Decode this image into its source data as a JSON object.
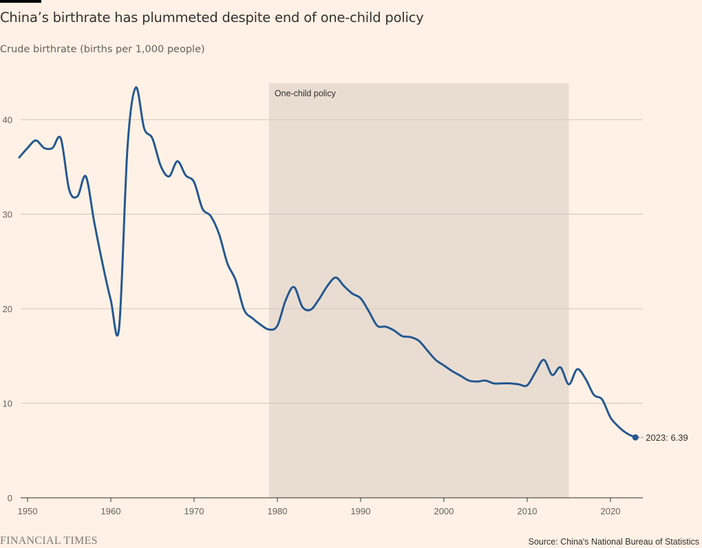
{
  "header": {
    "title": "China’s birthrate has plummeted despite end of one-child policy",
    "subtitle": "Crude birthrate (births per 1,000 people)"
  },
  "footer": {
    "brand": "FINANCIAL TIMES",
    "source": "Source: China's National Bureau of Statistics"
  },
  "colors": {
    "line": "#245890",
    "shade": "#E9DDD2",
    "grid": "#CEC6B9",
    "axis": "#33302E",
    "tick_text": "#66605C",
    "background": "#FFF1E5"
  },
  "chart_data": {
    "type": "line",
    "title": "China’s birthrate has plummeted despite end of one-child policy",
    "ylabel": "Crude birthrate (births per 1,000 people)",
    "xlabel": "",
    "xlim": [
      1949,
      2024
    ],
    "ylim": [
      0,
      44
    ],
    "yticks": [
      0,
      10,
      20,
      30,
      40
    ],
    "xticks": [
      1950,
      1960,
      1970,
      1980,
      1990,
      2000,
      2010,
      2020
    ],
    "grid": true,
    "shaded_region": {
      "label": "One-child policy",
      "x_start": 1979,
      "x_end": 2015
    },
    "end_label": "2023: 6.39",
    "series": [
      {
        "points": [
          [
            1949,
            36.0
          ],
          [
            1950,
            37.0
          ],
          [
            1951,
            37.8
          ],
          [
            1952,
            37.0
          ],
          [
            1953,
            37.0
          ],
          [
            1954,
            38.0
          ],
          [
            1955,
            32.6
          ],
          [
            1956,
            31.9
          ],
          [
            1957,
            34.0
          ],
          [
            1958,
            29.2
          ],
          [
            1959,
            24.8
          ],
          [
            1960,
            20.9
          ],
          [
            1961,
            18.0
          ],
          [
            1962,
            37.0
          ],
          [
            1963,
            43.4
          ],
          [
            1964,
            39.1
          ],
          [
            1965,
            38.0
          ],
          [
            1966,
            35.1
          ],
          [
            1967,
            34.0
          ],
          [
            1968,
            35.6
          ],
          [
            1969,
            34.1
          ],
          [
            1970,
            33.4
          ],
          [
            1971,
            30.6
          ],
          [
            1972,
            29.8
          ],
          [
            1973,
            27.9
          ],
          [
            1974,
            24.8
          ],
          [
            1975,
            23.0
          ],
          [
            1976,
            19.9
          ],
          [
            1977,
            19.0
          ],
          [
            1978,
            18.3
          ],
          [
            1979,
            17.8
          ],
          [
            1980,
            18.2
          ],
          [
            1981,
            20.9
          ],
          [
            1982,
            22.3
          ],
          [
            1983,
            20.2
          ],
          [
            1984,
            19.9
          ],
          [
            1985,
            21.0
          ],
          [
            1986,
            22.4
          ],
          [
            1987,
            23.3
          ],
          [
            1988,
            22.4
          ],
          [
            1989,
            21.6
          ],
          [
            1990,
            21.1
          ],
          [
            1991,
            19.7
          ],
          [
            1992,
            18.2
          ],
          [
            1993,
            18.1
          ],
          [
            1994,
            17.7
          ],
          [
            1995,
            17.1
          ],
          [
            1996,
            17.0
          ],
          [
            1997,
            16.6
          ],
          [
            1998,
            15.6
          ],
          [
            1999,
            14.6
          ],
          [
            2000,
            14.0
          ],
          [
            2001,
            13.4
          ],
          [
            2002,
            12.9
          ],
          [
            2003,
            12.4
          ],
          [
            2004,
            12.3
          ],
          [
            2005,
            12.4
          ],
          [
            2006,
            12.1
          ],
          [
            2007,
            12.1
          ],
          [
            2008,
            12.1
          ],
          [
            2009,
            12.0
          ],
          [
            2010,
            11.9
          ],
          [
            2011,
            13.3
          ],
          [
            2012,
            14.6
          ],
          [
            2013,
            13.0
          ],
          [
            2014,
            13.8
          ],
          [
            2015,
            12.0
          ],
          [
            2016,
            13.6
          ],
          [
            2017,
            12.6
          ],
          [
            2018,
            10.9
          ],
          [
            2019,
            10.4
          ],
          [
            2020,
            8.5
          ],
          [
            2021,
            7.5
          ],
          [
            2022,
            6.8
          ],
          [
            2023,
            6.39
          ]
        ]
      }
    ]
  }
}
